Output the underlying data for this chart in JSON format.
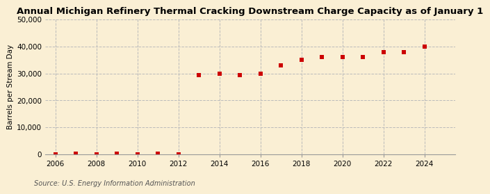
{
  "title": "Annual Michigan Refinery Thermal Cracking Downstream Charge Capacity as of January 1",
  "ylabel": "Barrels per Stream Day",
  "source": "Source: U.S. Energy Information Administration",
  "background_color": "#faefd4",
  "plot_bg_color": "#faefd4",
  "marker_color": "#cc0000",
  "marker": "s",
  "marker_size": 4,
  "xlim": [
    2005.5,
    2025.5
  ],
  "ylim": [
    0,
    50000
  ],
  "yticks": [
    0,
    10000,
    20000,
    30000,
    40000,
    50000
  ],
  "xticks": [
    2006,
    2008,
    2010,
    2012,
    2014,
    2016,
    2018,
    2020,
    2022,
    2024
  ],
  "grid_color": "#bbbbbb",
  "grid_style": "--",
  "years": [
    2006,
    2007,
    2008,
    2009,
    2010,
    2011,
    2012,
    2013,
    2014,
    2015,
    2016,
    2017,
    2018,
    2019,
    2020,
    2021,
    2022,
    2023,
    2024
  ],
  "values": [
    0,
    200,
    0,
    200,
    0,
    200,
    0,
    29500,
    30000,
    29500,
    30000,
    33000,
    35000,
    36000,
    36000,
    36000,
    38000,
    38000,
    40000
  ],
  "title_fontsize": 9.5,
  "label_fontsize": 7.5,
  "tick_fontsize": 7.5,
  "source_fontsize": 7
}
